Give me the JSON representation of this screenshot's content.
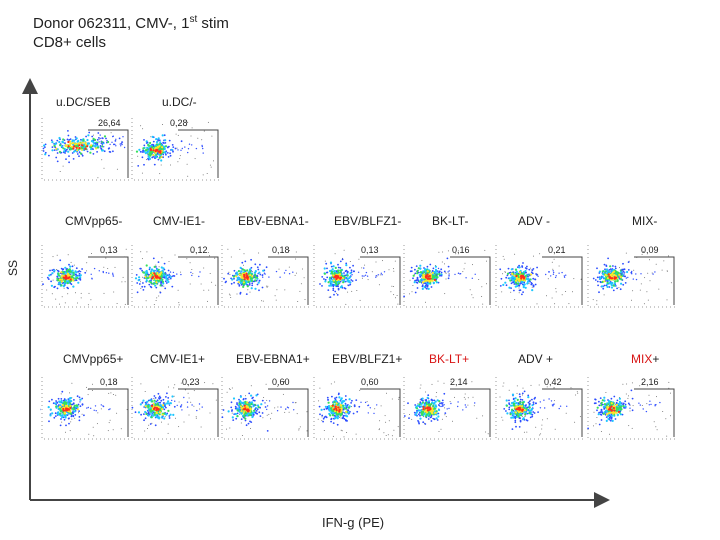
{
  "header": {
    "title_line1_pre": "Donor 062311, CMV-, 1",
    "title_line1_sup": "st",
    "title_line1_post": " stim",
    "title_line2": "CD8+ cells"
  },
  "axes": {
    "y_label": "SS",
    "x_label": "IFN-g (PE)"
  },
  "rows": [
    {
      "panels": [
        {
          "label": "u.DC/SEB",
          "pct": "26,64",
          "gated": "high"
        },
        {
          "label": "u.DC/-",
          "pct": "0,28",
          "gated": "low"
        }
      ]
    },
    {
      "panels": [
        {
          "label": "CMVpp65-",
          "pct": "0,13"
        },
        {
          "label": "CMV-IE1-",
          "pct": "0,12"
        },
        {
          "label": "EBV-EBNA1-",
          "pct": "0,18"
        },
        {
          "label": "EBV/BLFZ1-",
          "pct": "0,13"
        },
        {
          "label": "BK-LT-",
          "pct": "0,16"
        },
        {
          "label": "ADV -",
          "pct": "0,21"
        },
        {
          "label": "MIX-",
          "pct": "0,09"
        }
      ]
    },
    {
      "panels": [
        {
          "label": "CMVpp65+",
          "pct": "0,18"
        },
        {
          "label": "CMV-IE1+",
          "pct": "0,23"
        },
        {
          "label": "EBV-EBNA1+",
          "pct": "0,60"
        },
        {
          "label": "EBV/BLFZ1+",
          "pct": "0,60"
        },
        {
          "label": "BK-LT+",
          "pct": "2,14",
          "highlight": "full"
        },
        {
          "label": "ADV +",
          "pct": "0,42"
        },
        {
          "label_red": "MIX",
          "label_black": "+",
          "pct": "2,16"
        }
      ]
    }
  ],
  "colors": {
    "highlight": "#d81414",
    "axis": "#444444"
  }
}
